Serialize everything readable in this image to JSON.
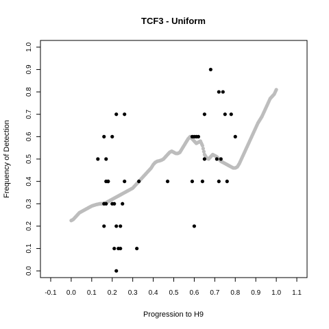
{
  "chart_data": {
    "type": "scatter",
    "title": "TCF3 - Uniform",
    "xlabel": "Progression to H9",
    "ylabel": "Frequency of Detection",
    "xlim": [
      -0.15,
      1.15
    ],
    "ylim": [
      -0.03,
      1.03
    ],
    "x_ticks": [
      -0.1,
      0.0,
      0.1,
      0.2,
      0.3,
      0.4,
      0.5,
      0.6,
      0.7,
      0.8,
      0.9,
      1.0,
      1.1
    ],
    "x_tick_labels": [
      "-0.1",
      "0.0",
      "0.1",
      "0.2",
      "0.3",
      "0.4",
      "0.5",
      "0.6",
      "0.7",
      "0.8",
      "0.9",
      "1.0",
      "1.1"
    ],
    "y_ticks": [
      0.0,
      0.1,
      0.2,
      0.3,
      0.4,
      0.5,
      0.6,
      0.7,
      0.8,
      0.9,
      1.0
    ],
    "y_tick_labels": [
      "0.0",
      "0.1",
      "0.2",
      "0.3",
      "0.4",
      "0.5",
      "0.6",
      "0.7",
      "0.8",
      "0.9",
      "1.0"
    ],
    "grid": false,
    "series": [
      {
        "kind": "points",
        "color": "#000000",
        "x": [
          0.13,
          0.16,
          0.16,
          0.16,
          0.17,
          0.17,
          0.17,
          0.18,
          0.18,
          0.2,
          0.2,
          0.21,
          0.21,
          0.22,
          0.22,
          0.22,
          0.23,
          0.24,
          0.24,
          0.25,
          0.26,
          0.26,
          0.32,
          0.33,
          0.47,
          0.59,
          0.59,
          0.6,
          0.6,
          0.61,
          0.62,
          0.64,
          0.65,
          0.65,
          0.68,
          0.71,
          0.72,
          0.72,
          0.73,
          0.74,
          0.75,
          0.76,
          0.78,
          0.8
        ],
        "y": [
          0.5,
          0.6,
          0.3,
          0.2,
          0.3,
          0.4,
          0.5,
          0.4,
          0.4,
          0.6,
          0.3,
          0.3,
          0.1,
          0.7,
          0.2,
          0.0,
          0.1,
          0.1,
          0.2,
          0.3,
          0.7,
          0.4,
          0.1,
          0.4,
          0.4,
          0.6,
          0.4,
          0.2,
          0.6,
          0.6,
          0.6,
          0.4,
          0.5,
          0.7,
          0.9,
          0.5,
          0.8,
          0.4,
          0.5,
          0.8,
          0.7,
          0.4,
          0.7,
          0.6
        ]
      },
      {
        "kind": "trend",
        "color": "#bdbdbd",
        "x": [
          0.0,
          0.01,
          0.02,
          0.03,
          0.04,
          0.05,
          0.06,
          0.07,
          0.08,
          0.09,
          0.1,
          0.11,
          0.12,
          0.13,
          0.14,
          0.15,
          0.16,
          0.17,
          0.18,
          0.19,
          0.2,
          0.21,
          0.22,
          0.23,
          0.24,
          0.25,
          0.26,
          0.27,
          0.28,
          0.29,
          0.3,
          0.31,
          0.32,
          0.33,
          0.34,
          0.35,
          0.36,
          0.37,
          0.38,
          0.39,
          0.4,
          0.41,
          0.42,
          0.43,
          0.44,
          0.45,
          0.46,
          0.47,
          0.48,
          0.49,
          0.5,
          0.51,
          0.52,
          0.53,
          0.54,
          0.55,
          0.56,
          0.57,
          0.58,
          0.59,
          0.6,
          0.61,
          0.62,
          0.63,
          0.64,
          0.65,
          0.66,
          0.67,
          0.68,
          0.69,
          0.7,
          0.71,
          0.72,
          0.73,
          0.74,
          0.75,
          0.76,
          0.77,
          0.78,
          0.79,
          0.8,
          0.81,
          0.82,
          0.83,
          0.84,
          0.85,
          0.86,
          0.87,
          0.88,
          0.89,
          0.9,
          0.91,
          0.92,
          0.93,
          0.94,
          0.95,
          0.96,
          0.97,
          0.98,
          0.99,
          1.0
        ],
        "y": [
          0.225,
          0.23,
          0.24,
          0.25,
          0.26,
          0.265,
          0.27,
          0.275,
          0.28,
          0.285,
          0.29,
          0.293,
          0.296,
          0.298,
          0.3,
          0.3,
          0.302,
          0.305,
          0.31,
          0.315,
          0.32,
          0.325,
          0.33,
          0.335,
          0.34,
          0.345,
          0.35,
          0.355,
          0.36,
          0.365,
          0.37,
          0.38,
          0.39,
          0.4,
          0.41,
          0.42,
          0.43,
          0.44,
          0.45,
          0.46,
          0.475,
          0.485,
          0.49,
          0.492,
          0.495,
          0.5,
          0.51,
          0.52,
          0.53,
          0.535,
          0.53,
          0.525,
          0.525,
          0.53,
          0.545,
          0.56,
          0.575,
          0.59,
          0.6,
          0.59,
          0.58,
          0.57,
          0.575,
          0.58,
          0.56,
          0.52,
          0.505,
          0.5,
          0.51,
          0.52,
          0.515,
          0.51,
          0.5,
          0.49,
          0.485,
          0.48,
          0.475,
          0.47,
          0.465,
          0.46,
          0.46,
          0.465,
          0.48,
          0.5,
          0.52,
          0.54,
          0.56,
          0.58,
          0.6,
          0.62,
          0.64,
          0.66,
          0.675,
          0.69,
          0.71,
          0.73,
          0.75,
          0.77,
          0.78,
          0.79,
          0.81
        ]
      }
    ]
  }
}
